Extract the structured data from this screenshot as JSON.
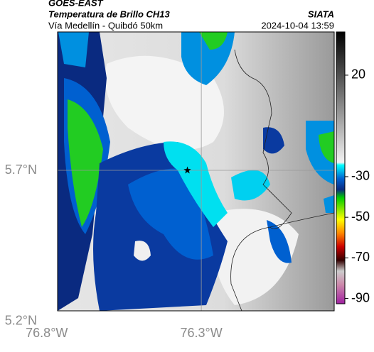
{
  "header": {
    "satellite": "GOES-EAST",
    "product": "Temperatura de Brillo CH13",
    "region": "Vía Medellín - Quibdó 50km",
    "source": "SIATA",
    "timestamp": "2024-10-04 13:59"
  },
  "map": {
    "lon_lim": [
      -76.765,
      -75.87
    ],
    "lat_lim": [
      5.235,
      6.158
    ],
    "lon_ticks": [
      {
        "value": -76.8,
        "label": "76.8°W"
      },
      {
        "value": -76.3,
        "label": "76.3°W"
      }
    ],
    "lat_ticks": [
      {
        "value": 5.7,
        "label": "5.7°N"
      },
      {
        "value": 5.2,
        "label": "5.2°N"
      }
    ],
    "marker": {
      "lon": -76.345,
      "lat": 5.7
    }
  },
  "colorbar": {
    "lim": [
      -92.6,
      41.3
    ],
    "ticks": [
      20,
      -30,
      -50,
      -70,
      -90
    ]
  }
}
